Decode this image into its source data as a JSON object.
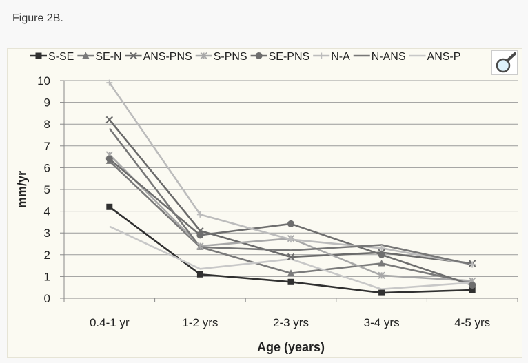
{
  "caption": "Figure 2B.",
  "chart_data": {
    "type": "line",
    "title": "",
    "xlabel": "Age (years)",
    "ylabel": "mm/yr",
    "categories": [
      "0.4-1 yr",
      "1-2 yrs",
      "2-3 yrs",
      "3-4 yrs",
      "4-5 yrs"
    ],
    "ylim": [
      0,
      10
    ],
    "yticks": [
      0,
      1,
      2,
      3,
      4,
      5,
      6,
      7,
      8,
      9,
      10
    ],
    "grid": true,
    "legend_position": "top",
    "series": [
      {
        "name": "S-SE",
        "color": "#303030",
        "marker": "square",
        "values": [
          4.2,
          1.1,
          0.75,
          0.25,
          0.38
        ]
      },
      {
        "name": "SE-N",
        "color": "#7a7a7a",
        "marker": "triangle",
        "values": [
          6.3,
          2.35,
          1.15,
          1.6,
          0.7
        ]
      },
      {
        "name": "ANS-PNS",
        "color": "#6a6a6a",
        "marker": "x",
        "values": [
          8.2,
          3.1,
          1.9,
          2.1,
          1.6
        ]
      },
      {
        "name": "S-PNS",
        "color": "#a8a8a8",
        "marker": "star",
        "values": [
          6.6,
          2.4,
          2.75,
          1.05,
          0.8
        ]
      },
      {
        "name": "SE-PNS",
        "color": "#6e6e6e",
        "marker": "circle",
        "values": [
          6.4,
          2.9,
          3.42,
          2.0,
          0.6
        ]
      },
      {
        "name": "N-A",
        "color": "#bcbcbc",
        "marker": "plus",
        "values": [
          9.9,
          3.85,
          2.7,
          2.3,
          1.55
        ]
      },
      {
        "name": "N-ANS",
        "color": "#777777",
        "marker": "none",
        "values": [
          7.8,
          2.35,
          2.2,
          2.45,
          1.55
        ]
      },
      {
        "name": "ANS-P",
        "color": "#c8c8c8",
        "marker": "none",
        "values": [
          3.3,
          1.35,
          1.8,
          0.42,
          0.72
        ]
      }
    ]
  },
  "icons": {
    "zoom": "magnifier-icon"
  }
}
